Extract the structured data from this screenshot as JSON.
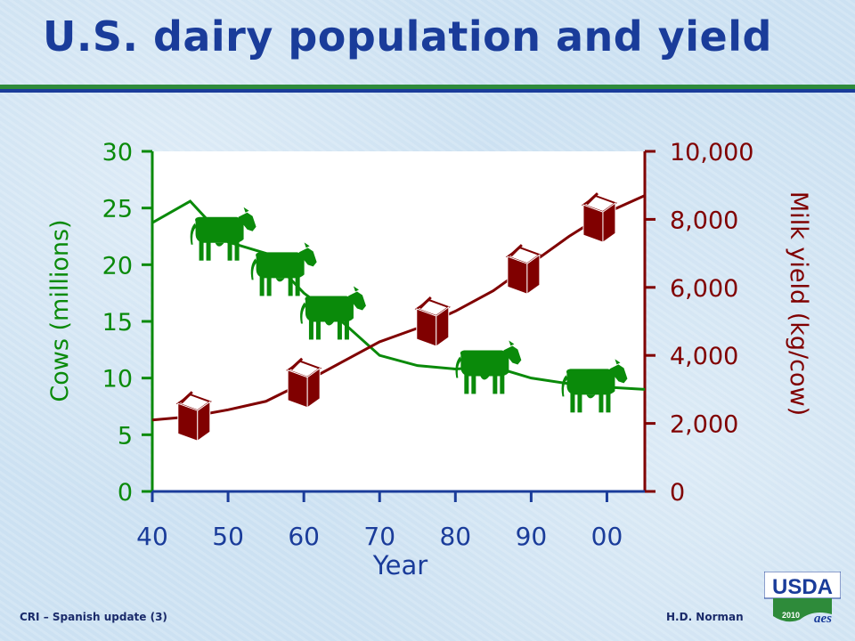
{
  "page": {
    "footer_left": "CRI – Spanish update (3)",
    "footer_right": "H.D. Norman",
    "logo": {
      "text": "USDA",
      "year": "2010",
      "mark": "aes"
    }
  },
  "colors": {
    "title": "#1a3c9a",
    "cows": "#0a8a0a",
    "milk": "#800000",
    "axis_x": "#1a3c9a",
    "plot_bg": "#ffffff"
  },
  "chart_data": {
    "type": "line",
    "title": "U.S. dairy population and yield",
    "xlabel": "Year",
    "ylabel": "Cows (millions)",
    "y2label": "Milk yield (kg/cow)",
    "x_ticks": [
      "40",
      "50",
      "60",
      "70",
      "80",
      "90",
      "00"
    ],
    "xlim": [
      1940,
      2005
    ],
    "ylim": [
      0,
      30
    ],
    "y2lim": [
      0,
      10000
    ],
    "y_ticks": [
      "0",
      "5",
      "10",
      "15",
      "20",
      "25",
      "30"
    ],
    "y2_ticks": [
      "0",
      "2,000",
      "4,000",
      "6,000",
      "8,000",
      "10,000"
    ],
    "grid": false,
    "series": [
      {
        "name": "Cows (millions)",
        "axis": "left",
        "marker": "cow-icon",
        "x": [
          1940,
          1945,
          1950,
          1955,
          1960,
          1965,
          1970,
          1975,
          1980,
          1985,
          1990,
          1995,
          2000,
          2005
        ],
        "y": [
          23.7,
          25.6,
          22.0,
          21.0,
          17.5,
          15.0,
          12.0,
          11.1,
          10.8,
          11.0,
          10.0,
          9.5,
          9.2,
          9.0
        ],
        "marker_x": [
          1949,
          1957,
          1963.5,
          1984,
          1998
        ]
      },
      {
        "name": "Milk yield (kg/cow)",
        "axis": "right",
        "marker": "milk-carton-icon",
        "x": [
          1940,
          1945,
          1950,
          1955,
          1960,
          1965,
          1970,
          1975,
          1980,
          1985,
          1990,
          1995,
          2000,
          2005
        ],
        "y": [
          2100,
          2200,
          2400,
          2650,
          3200,
          3800,
          4400,
          4800,
          5300,
          5900,
          6700,
          7500,
          8200,
          8700
        ],
        "marker_x": [
          1945.5,
          1960,
          1977,
          1989,
          1999
        ]
      }
    ]
  }
}
